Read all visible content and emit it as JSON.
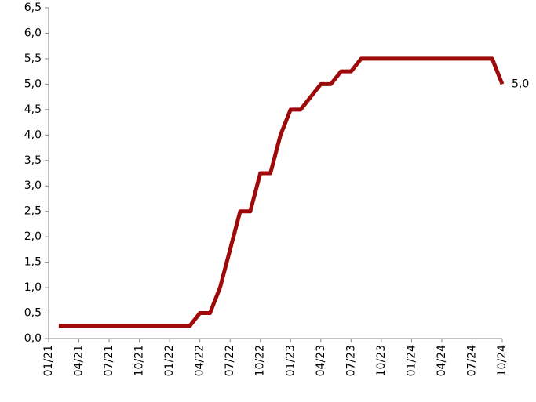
{
  "chart_data": {
    "type": "line",
    "categories": [
      "01/21",
      null,
      null,
      "04/21",
      null,
      null,
      "07/21",
      null,
      null,
      "10/21",
      null,
      null,
      "01/22",
      null,
      null,
      "04/22",
      null,
      null,
      "07/22",
      null,
      null,
      "10/22",
      null,
      null,
      "01/23",
      null,
      null,
      "04/23",
      null,
      null,
      "07/23",
      null,
      null,
      "10/23",
      null,
      null,
      "01/24",
      null,
      null,
      "04/24",
      null,
      null,
      "07/24",
      null,
      null,
      "10/24"
    ],
    "series": [
      {
        "color": "#9e0a0a",
        "values": [
          null,
          0.25,
          0.25,
          0.25,
          0.25,
          0.25,
          0.25,
          0.25,
          0.25,
          0.25,
          0.25,
          0.25,
          0.25,
          0.25,
          0.25,
          0.5,
          0.5,
          1.0,
          1.75,
          2.5,
          2.5,
          3.25,
          3.25,
          4.0,
          4.5,
          4.5,
          4.75,
          5.0,
          5.0,
          5.25,
          5.25,
          5.5,
          5.5,
          5.5,
          5.5,
          5.5,
          5.5,
          5.5,
          5.5,
          5.5,
          5.5,
          5.5,
          5.5,
          5.5,
          5.5,
          5.0
        ],
        "value_labels": [
          null,
          null,
          null,
          null,
          null,
          null,
          null,
          null,
          null,
          null,
          null,
          null,
          null,
          null,
          null,
          null,
          null,
          null,
          null,
          null,
          null,
          null,
          null,
          null,
          null,
          null,
          null,
          null,
          null,
          null,
          null,
          null,
          null,
          null,
          null,
          null,
          null,
          null,
          null,
          null,
          null,
          null,
          null,
          null,
          null,
          "5,0"
        ]
      }
    ],
    "ylim": [
      0,
      6.5
    ],
    "yticks": [
      {
        "value": 0,
        "label": "0,0"
      },
      {
        "value": 0.5,
        "label": "0,5"
      },
      {
        "value": 1,
        "label": "1,0"
      },
      {
        "value": 1.5,
        "label": "1,5"
      },
      {
        "value": 2,
        "label": "2,0"
      },
      {
        "value": 2.5,
        "label": "2,5"
      },
      {
        "value": 3,
        "label": "3,0"
      },
      {
        "value": 3.5,
        "label": "3,5"
      },
      {
        "value": 4,
        "label": "4,0"
      },
      {
        "value": 4.5,
        "label": "4,5"
      },
      {
        "value": 5,
        "label": "5,0"
      },
      {
        "value": 5.5,
        "label": "5,5"
      },
      {
        "value": 6,
        "label": "6,0"
      },
      {
        "value": 6.5,
        "label": "6,5"
      }
    ]
  }
}
